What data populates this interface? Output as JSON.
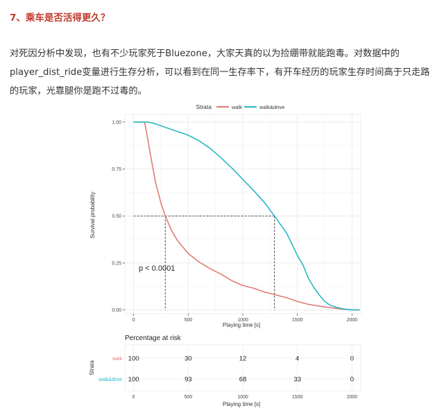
{
  "article": {
    "heading": "7、乘车是否活得更久？",
    "paragraph_lines": [
      "对死因分析中发现，也有不少玩家死于Bluezone，大家天真的以为捡绷带就能跑毒。对数据中的",
      "player_dist_ride变量进行生存分析，可以看到在同一生存率下，有开车经历的玩家生存时间高于只走路",
      "的玩家，光靠腿你是跑不过毒的。"
    ]
  },
  "chart_data": {
    "type": "line",
    "title": "",
    "legend": {
      "title": "Strata",
      "placement": "top",
      "entries": [
        "walk",
        "walk&drive"
      ]
    },
    "xlabel": "Playing time [s]",
    "ylabel": "Survival probability",
    "xlim": [
      -80,
      2080
    ],
    "ylim": [
      -0.02,
      1.04
    ],
    "x_ticks": [
      0,
      500,
      1000,
      1500,
      2000
    ],
    "y_ticks": [
      "0.00",
      "0.25",
      "0.50",
      "0.75",
      "1.00"
    ],
    "grid": true,
    "annotation": "p < 0.0001",
    "median_lines": [
      {
        "x": 290,
        "y": 0.5
      },
      {
        "x": 1290,
        "y": 0.5
      }
    ],
    "series": [
      {
        "name": "walk",
        "color": "#e07b72",
        "points": [
          [
            0,
            1.0
          ],
          [
            100,
            1.0
          ],
          [
            120,
            0.94
          ],
          [
            150,
            0.84
          ],
          [
            200,
            0.68
          ],
          [
            250,
            0.57
          ],
          [
            290,
            0.5
          ],
          [
            350,
            0.42
          ],
          [
            400,
            0.37
          ],
          [
            500,
            0.3
          ],
          [
            600,
            0.255
          ],
          [
            700,
            0.22
          ],
          [
            800,
            0.19
          ],
          [
            900,
            0.155
          ],
          [
            1000,
            0.13
          ],
          [
            1100,
            0.115
          ],
          [
            1200,
            0.095
          ],
          [
            1300,
            0.08
          ],
          [
            1400,
            0.065
          ],
          [
            1500,
            0.045
          ],
          [
            1600,
            0.03
          ],
          [
            1700,
            0.02
          ],
          [
            1800,
            0.012
          ],
          [
            1900,
            0.005
          ],
          [
            2000,
            0.0
          ],
          [
            2070,
            0.0
          ]
        ]
      },
      {
        "name": "walk&drive",
        "color": "#27b7c7",
        "points": [
          [
            0,
            1.0
          ],
          [
            130,
            1.0
          ],
          [
            200,
            0.99
          ],
          [
            300,
            0.97
          ],
          [
            400,
            0.95
          ],
          [
            500,
            0.93
          ],
          [
            600,
            0.9
          ],
          [
            700,
            0.86
          ],
          [
            800,
            0.81
          ],
          [
            900,
            0.755
          ],
          [
            1000,
            0.695
          ],
          [
            1100,
            0.635
          ],
          [
            1200,
            0.57
          ],
          [
            1290,
            0.5
          ],
          [
            1350,
            0.45
          ],
          [
            1400,
            0.41
          ],
          [
            1450,
            0.35
          ],
          [
            1500,
            0.29
          ],
          [
            1550,
            0.24
          ],
          [
            1600,
            0.17
          ],
          [
            1650,
            0.12
          ],
          [
            1700,
            0.08
          ],
          [
            1750,
            0.045
          ],
          [
            1800,
            0.025
          ],
          [
            1850,
            0.015
          ],
          [
            1900,
            0.008
          ],
          [
            1950,
            0.003
          ],
          [
            2000,
            0.0
          ],
          [
            2070,
            0.0
          ]
        ]
      }
    ],
    "risk_table": {
      "title": "Percentage at risk",
      "ylabel": "Strata",
      "xlabel": "Playing time [s]",
      "x_ticks": [
        0,
        500,
        1000,
        1500,
        2000
      ],
      "columns_x": [
        0,
        500,
        1000,
        1500,
        2000
      ],
      "rows": [
        {
          "name": "walk",
          "color": "#e07b72",
          "values": [
            "100",
            "30",
            "12",
            "4",
            "0"
          ]
        },
        {
          "name": "walk&drive",
          "color": "#27b7c7",
          "values": [
            "100",
            "93",
            "68",
            "33",
            "0"
          ]
        }
      ]
    }
  }
}
